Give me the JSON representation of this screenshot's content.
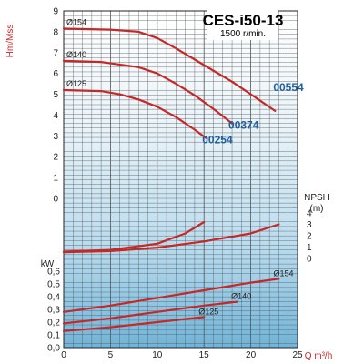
{
  "chart_data": {
    "type": "line",
    "title": "CES-i50-13",
    "subtitle": "1500 r/min.",
    "xlabel": "Q m³/h",
    "xlim": [
      0,
      25
    ],
    "x_ticks": [
      "0",
      "5",
      "10",
      "15",
      "20",
      "25"
    ],
    "head_panel": {
      "ylabel": "Hm/Mss",
      "ylim": [
        0,
        9
      ],
      "y_ticks": [
        "0",
        "1",
        "2",
        "3",
        "4",
        "5",
        "6",
        "7",
        "8",
        "9"
      ],
      "series": [
        {
          "impeller": "Ø154",
          "model": "00554",
          "points": [
            [
              0,
              8.15
            ],
            [
              5,
              8.1
            ],
            [
              8,
              8.0
            ],
            [
              10,
              7.7
            ],
            [
              12,
              7.2
            ],
            [
              15,
              6.4
            ],
            [
              18,
              5.6
            ],
            [
              20,
              5.0
            ],
            [
              22.6,
              4.2
            ]
          ]
        },
        {
          "impeller": "Ø140",
          "model": "00374",
          "points": [
            [
              0,
              6.6
            ],
            [
              4,
              6.55
            ],
            [
              8,
              6.3
            ],
            [
              10,
              6.0
            ],
            [
              12,
              5.5
            ],
            [
              14,
              4.95
            ],
            [
              16,
              4.3
            ],
            [
              18,
              3.6
            ]
          ]
        },
        {
          "impeller": "Ø125",
          "model": "00254",
          "points": [
            [
              0,
              5.2
            ],
            [
              4,
              5.15
            ],
            [
              6,
              5.0
            ],
            [
              8,
              4.75
            ],
            [
              10,
              4.4
            ],
            [
              12,
              3.9
            ],
            [
              14,
              3.3
            ],
            [
              15.2,
              2.9
            ]
          ]
        }
      ]
    },
    "npsh_panel": {
      "ylabel": "NPSH",
      "yunit": "(m)",
      "ylim": [
        0,
        4
      ],
      "y_ticks": [
        "0",
        "1",
        "2",
        "3",
        "4"
      ],
      "series": [
        {
          "name": "",
          "points": [
            [
              0,
              0.6
            ],
            [
              5,
              0.75
            ],
            [
              10,
              1.3
            ],
            [
              13,
              2.2
            ],
            [
              15,
              3.2
            ]
          ]
        },
        {
          "name": "",
          "points": [
            [
              0,
              0.55
            ],
            [
              5,
              0.65
            ],
            [
              10,
              0.95
            ],
            [
              15,
              1.5
            ],
            [
              20,
              2.2
            ],
            [
              23,
              3.0
            ]
          ]
        }
      ]
    },
    "power_panel": {
      "ylabel": "kW",
      "ylim": [
        0,
        0.6
      ],
      "y_ticks": [
        "0,0",
        "0,1",
        "0,2",
        "0,3",
        "0,4",
        "0,5",
        "0,6"
      ],
      "series": [
        {
          "impeller": "Ø154",
          "points": [
            [
              0,
              0.28
            ],
            [
              5,
              0.33
            ],
            [
              10,
              0.39
            ],
            [
              15,
              0.45
            ],
            [
              20,
              0.51
            ],
            [
              23,
              0.54
            ]
          ]
        },
        {
          "impeller": "Ø140",
          "points": [
            [
              0,
              0.19
            ],
            [
              5,
              0.23
            ],
            [
              10,
              0.28
            ],
            [
              15,
              0.33
            ],
            [
              18.5,
              0.36
            ]
          ]
        },
        {
          "impeller": "Ø125",
          "points": [
            [
              0,
              0.13
            ],
            [
              5,
              0.16
            ],
            [
              10,
              0.2
            ],
            [
              15,
              0.24
            ]
          ]
        }
      ]
    }
  }
}
